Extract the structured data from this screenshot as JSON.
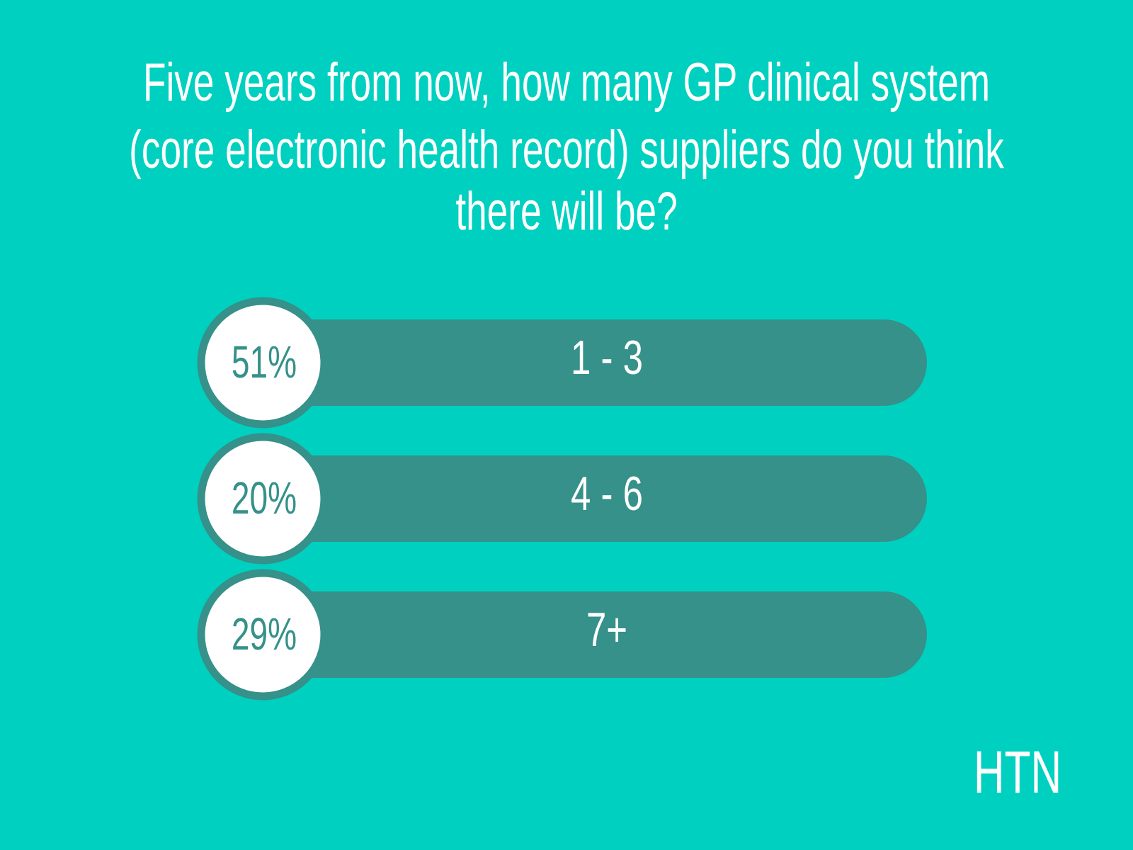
{
  "title": [
    "Five years from now, how many GP clinical system",
    "(core electronic health record) suppliers do you think",
    "there will be?"
  ],
  "options": [
    {
      "percent": "51%",
      "label": "1 - 3"
    },
    {
      "percent": "20%",
      "label": "4 - 6"
    },
    {
      "percent": "29%",
      "label": "7+"
    }
  ],
  "brand": "HTN"
}
